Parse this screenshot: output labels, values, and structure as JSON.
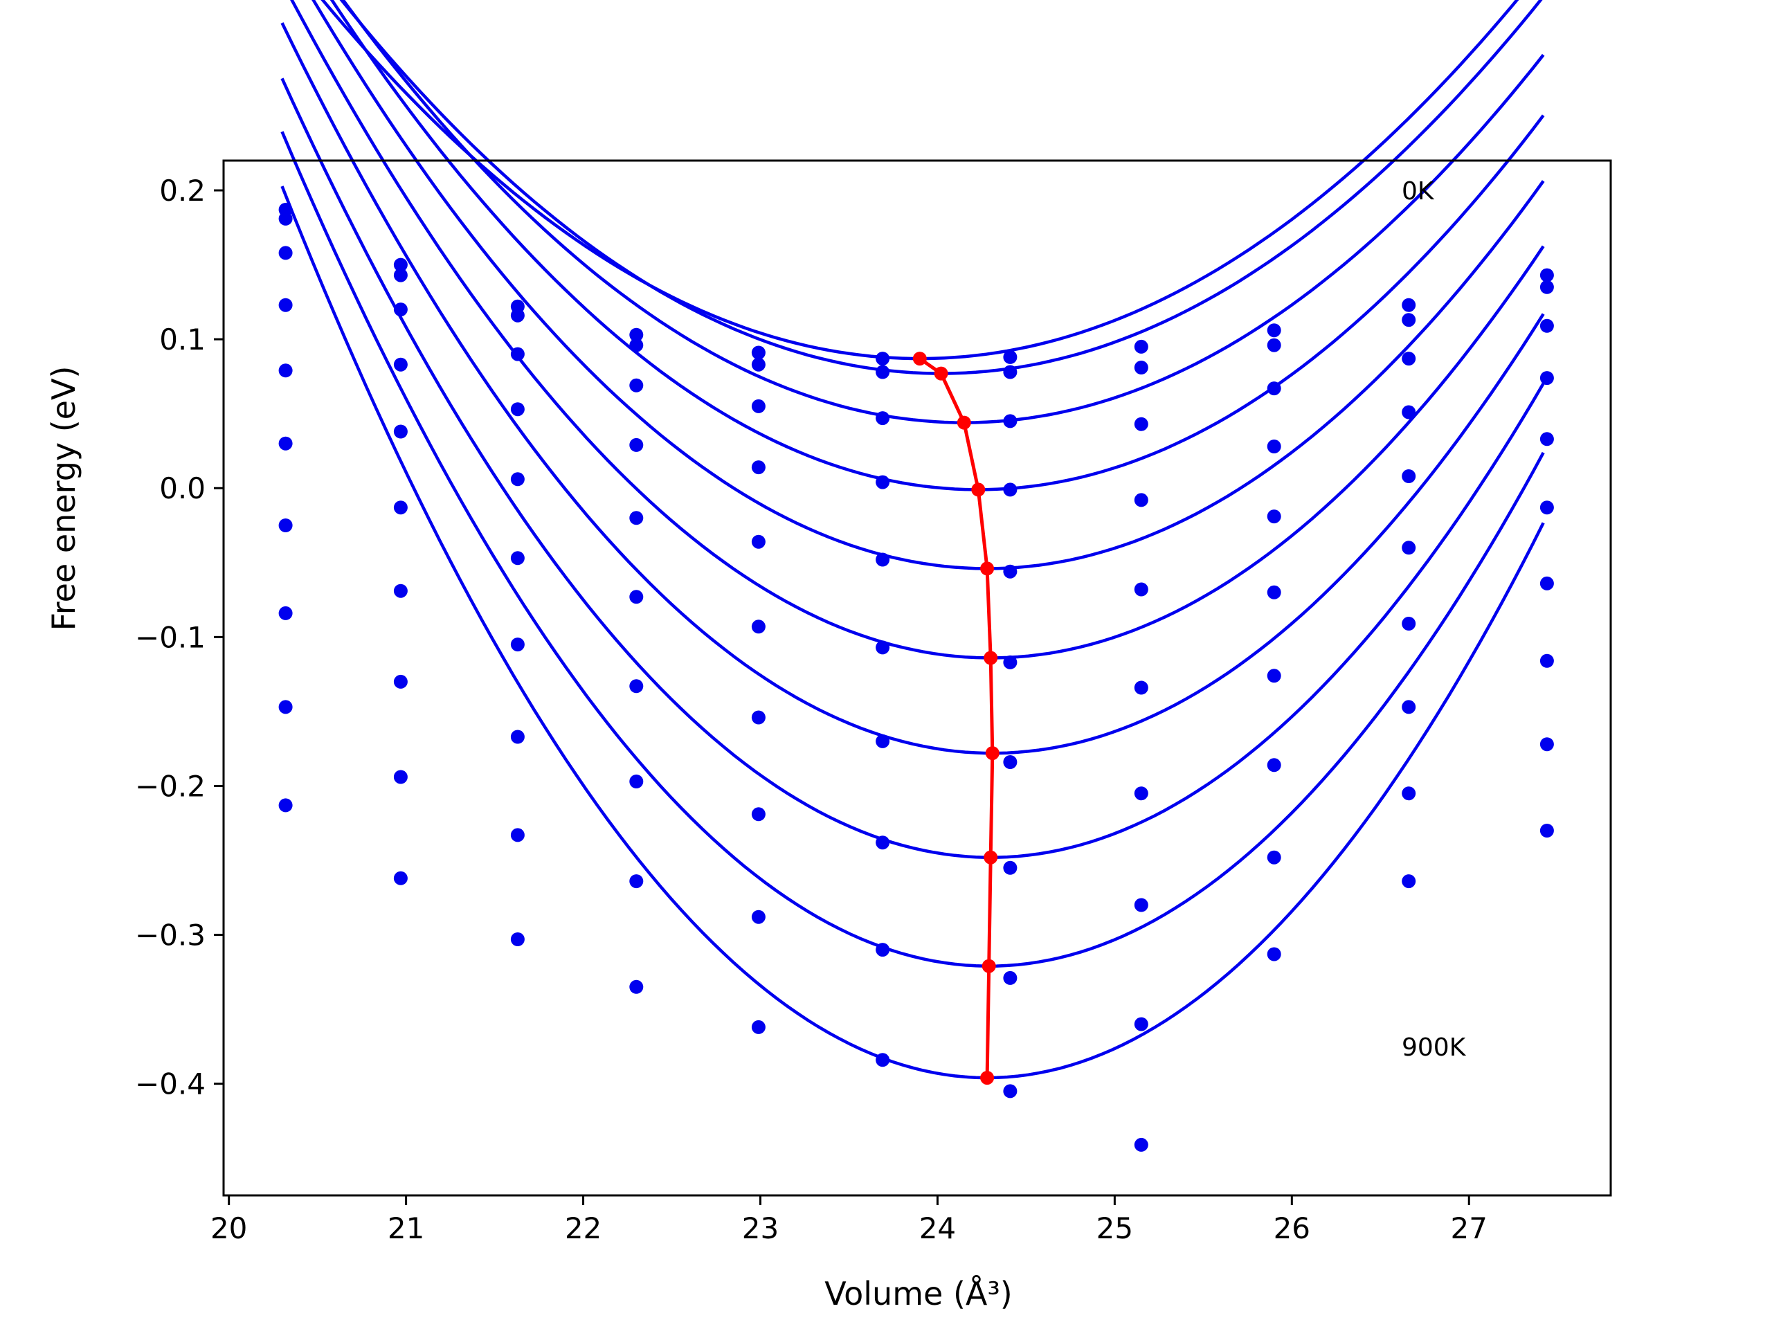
{
  "chart_data": {
    "type": "scatter",
    "xlabel": "Volume (Å³)",
    "ylabel": "Free energy (eV)",
    "xlim": [
      19.97,
      27.8
    ],
    "ylim": [
      -0.475,
      0.22
    ],
    "xticks": [
      20,
      21,
      22,
      23,
      24,
      25,
      26,
      27
    ],
    "xtick_labels": [
      "20",
      "21",
      "22",
      "23",
      "24",
      "25",
      "26",
      "27"
    ],
    "yticks": [
      0.2,
      0.1,
      0.0,
      -0.1,
      -0.2,
      -0.3,
      -0.4
    ],
    "ytick_labels": [
      "0.2",
      "0.1",
      "0.0",
      "−0.1",
      "−0.2",
      "−0.3",
      "−0.4"
    ],
    "grid": false,
    "annotations": [
      {
        "text": "0K",
        "x": 26.62,
        "y": 0.2
      },
      {
        "text": "900K",
        "x": 26.62,
        "y": -0.375
      }
    ],
    "volumes": [
      20.32,
      20.97,
      21.63,
      22.3,
      22.99,
      23.69,
      24.41,
      25.15,
      25.9,
      26.66,
      27.44
    ],
    "curve_x_range": [
      20.3,
      27.42
    ],
    "series": [
      {
        "points": [
          0.187,
          0.15,
          0.122,
          0.103,
          0.091,
          0.087,
          0.088,
          0.095,
          0.106,
          0.123,
          0.143
        ],
        "fit": {
          "a": 0.0212,
          "v0": 23.9,
          "e0": 0.087
        }
      },
      {
        "points": [
          0.181,
          0.143,
          0.116,
          0.096,
          0.083,
          0.078,
          0.078,
          0.081,
          0.096,
          0.113,
          0.135
        ],
        "fit": {
          "a": 0.0219,
          "v0": 24.02,
          "e0": 0.077
        }
      },
      {
        "points": [
          0.158,
          0.12,
          0.09,
          0.069,
          0.055,
          0.047,
          0.045,
          0.043,
          0.067,
          0.087,
          0.109
        ],
        "fit": {
          "a": 0.0231,
          "v0": 24.15,
          "e0": 0.044
        }
      },
      {
        "points": [
          0.123,
          0.083,
          0.053,
          0.029,
          0.014,
          0.004,
          -0.001,
          -0.008,
          0.028,
          0.051,
          0.074
        ],
        "fit": {
          "a": 0.0247,
          "v0": 24.23,
          "e0": -0.001
        }
      },
      {
        "points": [
          0.079,
          0.038,
          0.006,
          -0.02,
          -0.036,
          -0.048,
          -0.056,
          -0.068,
          -0.019,
          0.008,
          0.033
        ],
        "fit": {
          "a": 0.0264,
          "v0": 24.28,
          "e0": -0.054
        }
      },
      {
        "points": [
          0.03,
          -0.013,
          -0.047,
          -0.073,
          -0.093,
          -0.107,
          -0.117,
          -0.134,
          -0.07,
          -0.04,
          -0.013
        ],
        "fit": {
          "a": 0.0284,
          "v0": 24.3,
          "e0": -0.114
        }
      },
      {
        "points": [
          -0.025,
          -0.069,
          -0.105,
          -0.133,
          -0.154,
          -0.17,
          -0.184,
          -0.205,
          -0.126,
          -0.091,
          -0.064
        ],
        "fit": {
          "a": 0.0305,
          "v0": 24.31,
          "e0": -0.178
        }
      },
      {
        "points": [
          -0.084,
          -0.13,
          -0.167,
          -0.197,
          -0.219,
          -0.238,
          -0.255,
          -0.28,
          -0.186,
          -0.147,
          -0.116
        ],
        "fit": {
          "a": 0.0327,
          "v0": 24.3,
          "e0": -0.248
        }
      },
      {
        "points": [
          -0.147,
          -0.194,
          -0.233,
          -0.264,
          -0.288,
          -0.31,
          -0.329,
          -0.36,
          -0.248,
          -0.205,
          -0.172
        ],
        "fit": {
          "a": 0.0352,
          "v0": 24.29,
          "e0": -0.321
        }
      },
      {
        "points": [
          -0.213,
          -0.262,
          -0.303,
          -0.335,
          -0.362,
          -0.384,
          -0.405,
          -0.441,
          -0.313,
          -0.264,
          -0.23
        ],
        "fit": {
          "a": 0.0378,
          "v0": 24.28,
          "e0": -0.396
        }
      }
    ],
    "minimum_line": {
      "x": [
        23.9,
        24.02,
        24.15,
        24.23,
        24.28,
        24.3,
        24.31,
        24.3,
        24.29,
        24.28
      ],
      "y": [
        0.087,
        0.077,
        0.044,
        -0.001,
        -0.054,
        -0.114,
        -0.178,
        -0.248,
        -0.321,
        -0.396
      ]
    },
    "colors": {
      "data": "#0000ee",
      "minimum": "#ff0000",
      "axes": "#000000"
    }
  }
}
